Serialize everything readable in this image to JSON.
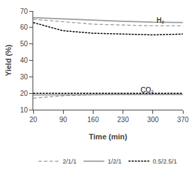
{
  "chart_data": {
    "type": "line",
    "x": [
      20,
      90,
      160,
      230,
      300,
      370
    ],
    "series": [
      {
        "name": "2/1/1",
        "color": "#999999",
        "line_style": "dashed",
        "values": [
          65.0,
          63.5,
          62.0,
          61.5,
          61.0,
          61.0
        ]
      },
      {
        "name": "1/2/1",
        "color": "#999999",
        "line_style": "solid",
        "values": [
          66.0,
          65.2,
          64.5,
          63.8,
          63.2,
          63.0
        ]
      },
      {
        "name": "0.5/2.5/1",
        "color": "#000000",
        "line_style": "densely_dashed",
        "values": [
          63.0,
          58.0,
          56.5,
          56.0,
          55.5,
          56.0
        ]
      },
      {
        "name": "2/1/1",
        "color": "#999999",
        "line_style": "dashed",
        "values": [
          17.0,
          18.5,
          19.0,
          19.2,
          19.3,
          19.3
        ]
      },
      {
        "name": "1/2/1",
        "color": "#999999",
        "line_style": "solid",
        "values": [
          19.0,
          19.2,
          19.3,
          19.3,
          19.3,
          19.3
        ]
      },
      {
        "name": "0.5/2.5/1",
        "color": "#000000",
        "line_style": "densely_dashed",
        "values": [
          20.0,
          20.0,
          20.0,
          20.0,
          20.0,
          20.0
        ]
      }
    ],
    "annotations": [
      {
        "text": "H₂",
        "x": 305,
        "y": 64.5
      },
      {
        "text": "CO₂",
        "x": 268,
        "y": 21.8
      }
    ],
    "xlabel": "Time (min)",
    "ylabel": "Yield (%)",
    "xlim": [
      20,
      370
    ],
    "ylim": [
      10,
      70
    ],
    "xticks": [
      20,
      90,
      160,
      230,
      300,
      370
    ],
    "yticks": [
      10,
      20,
      30,
      40,
      50,
      60,
      70
    ],
    "grid": false,
    "legend": "bottom"
  }
}
